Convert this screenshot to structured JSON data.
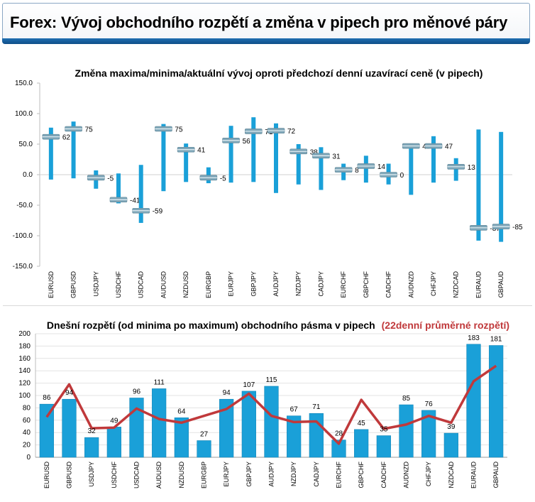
{
  "header": {
    "title": "Forex: Vývoj obchodního rozpětí a změna v pipech pro měnové páry"
  },
  "chart_data": [
    {
      "type": "range",
      "title": "Změna maxima/minima/aktuální vývoj oproti předchozí denní uzavírací ceně (v pipech)",
      "ylim": [
        -150,
        150
      ],
      "yticks": [
        "150.0",
        "100.0",
        "50.0",
        "0.0",
        "-50.0",
        "-100.0",
        "-150.0"
      ],
      "categories": [
        "EURUSD",
        "GBPUSD",
        "USDJPY",
        "USDCHF",
        "USDCAD",
        "AUDUSD",
        "NZDUSD",
        "EURGBP",
        "EURJPY",
        "GBPJPY",
        "AUDJPY",
        "NZDJPY",
        "CADJPY",
        "EURCHF",
        "GBPCHF",
        "CADCHF",
        "AUDNZD",
        "CHFJPY",
        "NZDCAD",
        "EURAUD",
        "GBPAUD"
      ],
      "high": [
        77,
        87,
        7,
        2,
        16,
        83,
        51,
        12,
        80,
        94,
        84,
        50,
        45,
        18,
        31,
        18,
        51,
        63,
        27,
        74,
        70
      ],
      "low": [
        -8,
        -6,
        -23,
        -47,
        -79,
        -27,
        -12,
        -14,
        -13,
        -12,
        -30,
        -16,
        -25,
        -9,
        -13,
        -16,
        -33,
        -13,
        -10,
        -108,
        -110
      ],
      "current": [
        62,
        75,
        -5,
        -41,
        -59,
        75,
        41,
        -5,
        56,
        71,
        72,
        38,
        31,
        8,
        14,
        0,
        47,
        47,
        13,
        -87,
        -85
      ],
      "labels": [
        "62",
        "75",
        "-5",
        "-41",
        "-59",
        "75",
        "41",
        "-5",
        "56",
        "71",
        "72",
        "38",
        "31",
        "8",
        "14",
        "0",
        "47",
        "47",
        "13",
        "-87",
        "-85"
      ],
      "colors": {
        "range": "#1aa0d8",
        "marker": "#7fa6b8"
      }
    },
    {
      "type": "bar+line",
      "title": "Dnešní rozpětí (od minima po maximum) obchodního pásma v pipech",
      "title_extra": "(22denní průměrné rozpětí)",
      "ylim": [
        0,
        200
      ],
      "yticks": [
        "200",
        "180",
        "160",
        "140",
        "120",
        "100",
        "80",
        "60",
        "40",
        "20",
        "0"
      ],
      "categories": [
        "EURUSD",
        "GBPUSD",
        "USDJPY",
        "USDCHF",
        "USDCAD",
        "AUDUSD",
        "NZDUSD",
        "EURGBP",
        "EURJPY",
        "GBPJPY",
        "AUDJPY",
        "NZDJPY",
        "CADJPY",
        "EURCHF",
        "GBPCHF",
        "CADCHF",
        "AUDNZD",
        "CHFJPY",
        "NZDCAD",
        "EURAUD",
        "GBPAUD"
      ],
      "values": [
        86,
        94,
        32,
        49,
        96,
        111,
        64,
        27,
        94,
        107,
        115,
        67,
        71,
        28,
        45,
        35,
        85,
        76,
        39,
        183,
        181
      ],
      "labels": [
        "86",
        "94",
        "32",
        "49",
        "96",
        "111",
        "64",
        "27",
        "94",
        "107",
        "115",
        "67",
        "71",
        "28",
        "45",
        "35",
        "85",
        "76",
        "39",
        "183",
        "181"
      ],
      "average": [
        65,
        118,
        47,
        48,
        79,
        62,
        56,
        67,
        78,
        103,
        67,
        57,
        58,
        22,
        93,
        46,
        53,
        67,
        56,
        123,
        148
      ],
      "colors": {
        "bar": "#1aa0d8",
        "line": "#c0393b",
        "title_extra": "#c0393b"
      }
    }
  ]
}
